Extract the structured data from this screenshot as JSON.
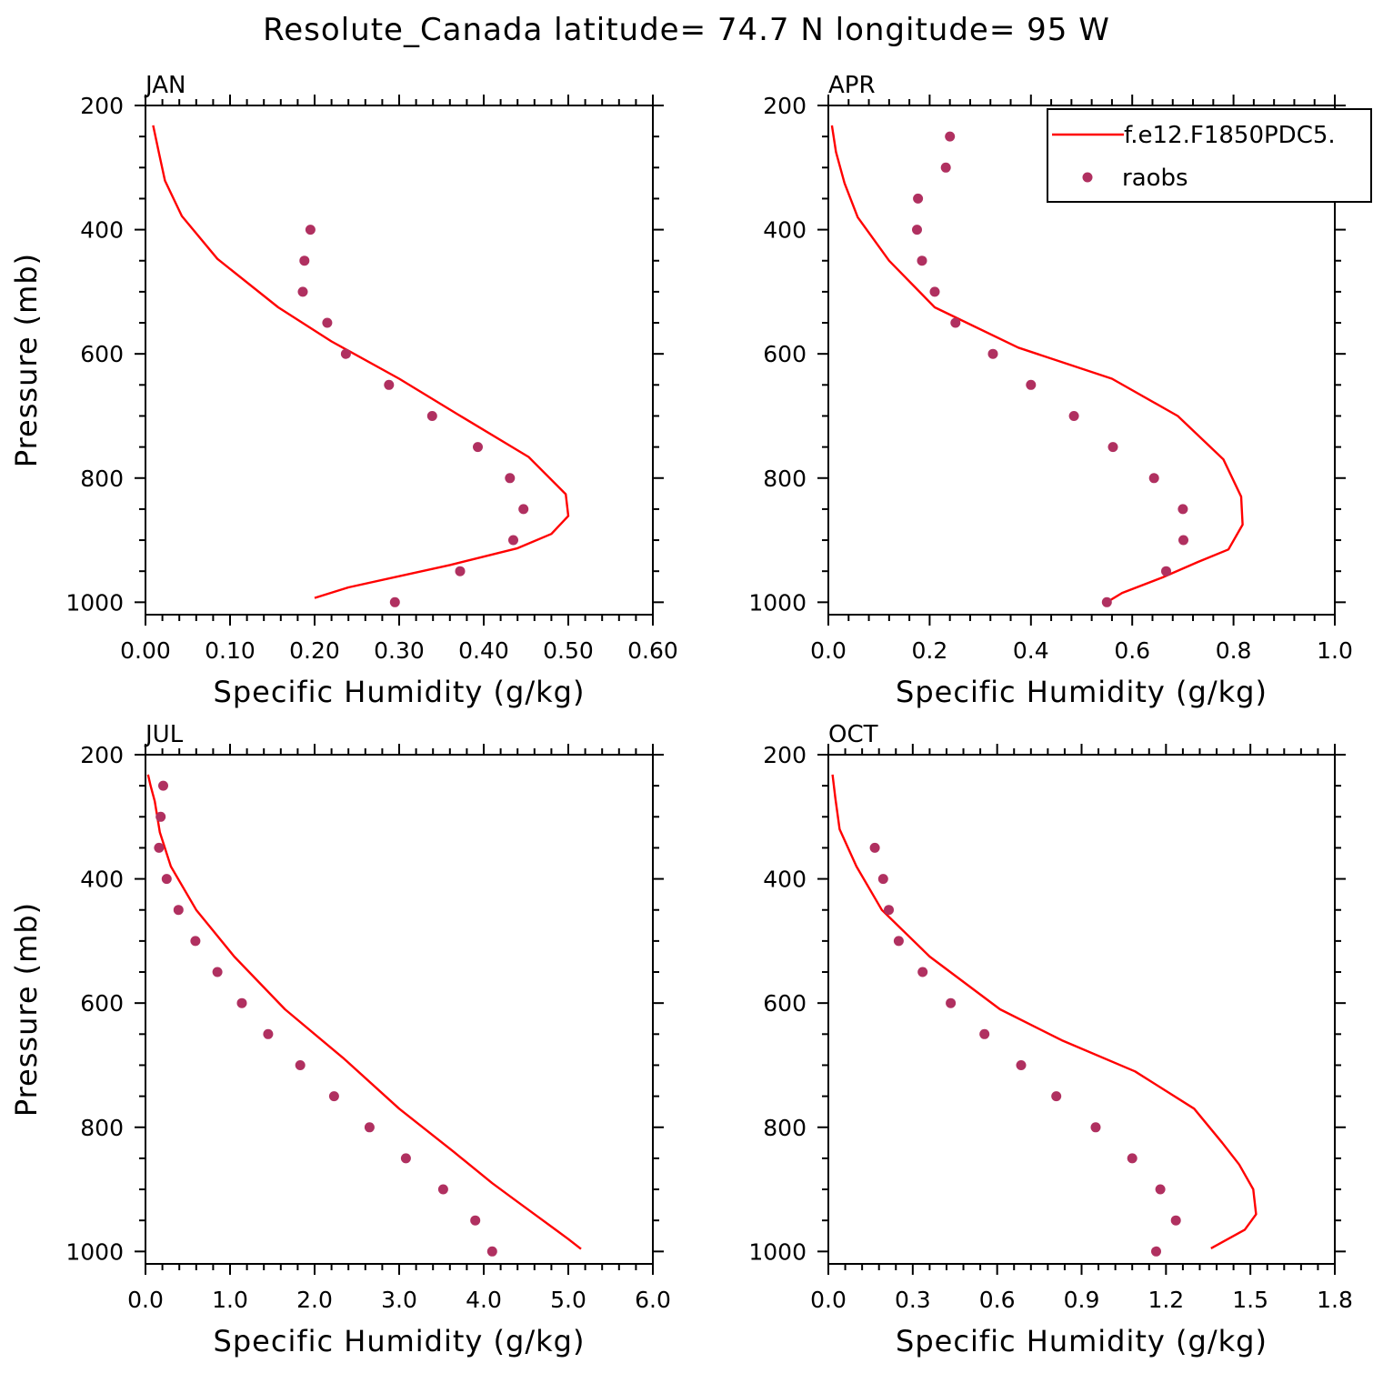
{
  "title": "Resolute_Canada  latitude= 74.7 N longitude= 95 W",
  "colors": {
    "model_line": "#ff0000",
    "obs_points": "#b03060",
    "axes": "#000000",
    "background": "#ffffff"
  },
  "legend": {
    "placement": "top-right of APR panel",
    "model_label": "f.e12.F1850PDC5.",
    "obs_label": "raobs"
  },
  "chart_data": [
    {
      "type": "line",
      "panel": "JAN",
      "xlabel": "Specific Humidity (g/kg)",
      "ylabel": "Pressure (mb)",
      "xlim": [
        0,
        0.6
      ],
      "ylim": [
        1000,
        200
      ],
      "xticks": [
        "0.00",
        "0.10",
        "0.20",
        "0.30",
        "0.40",
        "0.50",
        "0.60"
      ],
      "yticks": [
        "200",
        "400",
        "600",
        "800",
        "1000"
      ],
      "grid": false,
      "series": [
        {
          "name": "f.e12.F1850PDC5.",
          "style": "line",
          "x": [
            0.2,
            0.24,
            0.36,
            0.44,
            0.48,
            0.5,
            0.497,
            0.453,
            0.37,
            0.3,
            0.22,
            0.157,
            0.085,
            0.043,
            0.023,
            0.016,
            0.009
          ],
          "y": [
            993,
            976,
            940,
            913,
            890,
            861,
            826,
            766,
            698,
            640,
            580,
            525,
            447,
            378,
            321,
            277,
            232
          ]
        },
        {
          "name": "raobs",
          "style": "scatter",
          "x": [
            0.295,
            0.372,
            0.435,
            0.447,
            0.431,
            0.393,
            0.339,
            0.288,
            0.237,
            0.215,
            0.186,
            0.188,
            0.195
          ],
          "y": [
            1000,
            950,
            900,
            850,
            800,
            750,
            700,
            650,
            600,
            550,
            500,
            450,
            400
          ]
        }
      ]
    },
    {
      "type": "line",
      "panel": "APR",
      "xlabel": "Specific Humidity (g/kg)",
      "ylabel": "",
      "xlim": [
        0,
        1.0
      ],
      "ylim": [
        1000,
        200
      ],
      "xticks": [
        "0.0",
        "0.2",
        "0.4",
        "0.6",
        "0.8",
        "1.0"
      ],
      "yticks": [
        "200",
        "400",
        "600",
        "800",
        "1000"
      ],
      "grid": false,
      "series": [
        {
          "name": "f.e12.F1850PDC5.",
          "style": "line",
          "x": [
            0.55,
            0.58,
            0.66,
            0.73,
            0.79,
            0.818,
            0.815,
            0.78,
            0.69,
            0.56,
            0.375,
            0.21,
            0.12,
            0.058,
            0.032,
            0.015,
            0.007
          ],
          "y": [
            1000,
            985,
            960,
            935,
            915,
            875,
            830,
            770,
            700,
            640,
            590,
            525,
            450,
            380,
            325,
            275,
            232
          ]
        },
        {
          "name": "raobs",
          "style": "scatter",
          "x": [
            0.55,
            0.667,
            0.701,
            0.7,
            0.643,
            0.562,
            0.485,
            0.4,
            0.325,
            0.251,
            0.21,
            0.185,
            0.175,
            0.177,
            0.232,
            0.24
          ],
          "y": [
            1000,
            950,
            900,
            850,
            800,
            750,
            700,
            650,
            600,
            550,
            500,
            450,
            400,
            350,
            300,
            250
          ]
        }
      ]
    },
    {
      "type": "line",
      "panel": "JUL",
      "xlabel": "Specific Humidity (g/kg)",
      "ylabel": "Pressure (mb)",
      "xlim": [
        0,
        6.0
      ],
      "ylim": [
        1000,
        200
      ],
      "xticks": [
        "0.0",
        "1.0",
        "2.0",
        "3.0",
        "4.0",
        "5.0",
        "6.0"
      ],
      "yticks": [
        "200",
        "400",
        "600",
        "800",
        "1000"
      ],
      "grid": false,
      "series": [
        {
          "name": "f.e12.F1850PDC5.",
          "style": "line",
          "x": [
            5.15,
            5.0,
            4.85,
            4.65,
            4.35,
            4.1,
            3.65,
            3.0,
            2.35,
            1.65,
            1.05,
            0.6,
            0.3,
            0.17,
            0.11,
            0.06,
            0.03
          ],
          "y": [
            996,
            980,
            965,
            945,
            915,
            890,
            840,
            770,
            690,
            610,
            525,
            450,
            380,
            325,
            275,
            250,
            232
          ]
        },
        {
          "name": "raobs",
          "style": "scatter",
          "x": [
            4.1,
            3.9,
            3.52,
            3.08,
            2.65,
            2.23,
            1.83,
            1.45,
            1.14,
            0.85,
            0.59,
            0.39,
            0.25,
            0.16,
            0.18,
            0.21
          ],
          "y": [
            1000,
            950,
            900,
            850,
            800,
            750,
            700,
            650,
            600,
            550,
            500,
            450,
            400,
            350,
            300,
            250
          ]
        }
      ]
    },
    {
      "type": "line",
      "panel": "OCT",
      "xlabel": "Specific Humidity (g/kg)",
      "ylabel": "",
      "xlim": [
        0,
        1.8
      ],
      "ylim": [
        1000,
        200
      ],
      "xticks": [
        "0.0",
        "0.3",
        "0.6",
        "0.9",
        "1.2",
        "1.5",
        "1.8"
      ],
      "yticks": [
        "200",
        "400",
        "600",
        "800",
        "1000"
      ],
      "grid": false,
      "series": [
        {
          "name": "f.e12.F1850PDC5.",
          "style": "line",
          "x": [
            1.36,
            1.48,
            1.52,
            1.51,
            1.46,
            1.4,
            1.3,
            1.09,
            0.83,
            0.61,
            0.36,
            0.19,
            0.1,
            0.04,
            0.025,
            0.015
          ],
          "y": [
            995,
            965,
            940,
            900,
            860,
            825,
            770,
            710,
            660,
            610,
            525,
            450,
            380,
            320,
            270,
            232
          ]
        },
        {
          "name": "raobs",
          "style": "scatter",
          "x": [
            1.165,
            1.235,
            1.18,
            1.08,
            0.95,
            0.81,
            0.685,
            0.555,
            0.435,
            0.335,
            0.25,
            0.215,
            0.195,
            0.165
          ],
          "y": [
            1000,
            950,
            900,
            850,
            800,
            750,
            700,
            650,
            600,
            550,
            500,
            450,
            400,
            350
          ]
        }
      ]
    }
  ]
}
